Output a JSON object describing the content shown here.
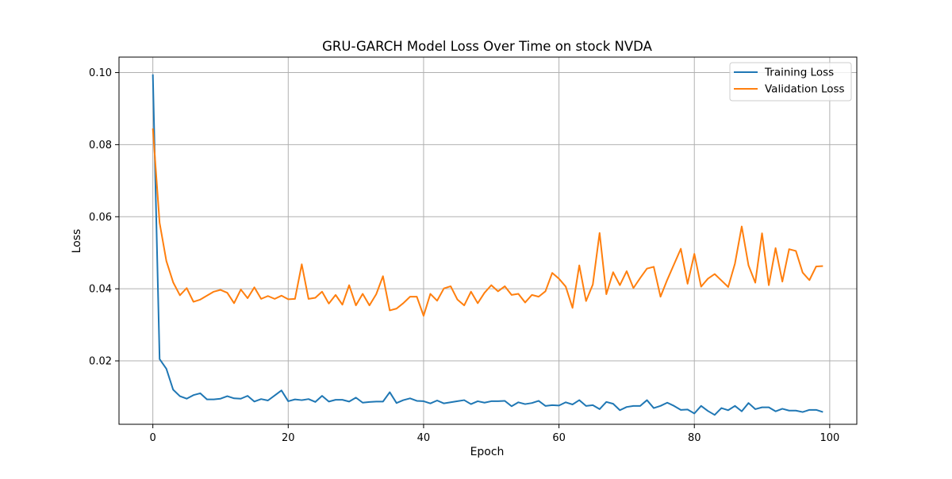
{
  "chart_data": {
    "type": "line",
    "title": "GRU-GARCH Model Loss Over Time on stock NVDA",
    "xlabel": "Epoch",
    "ylabel": "Loss",
    "xlim": [
      -5,
      104
    ],
    "ylim": [
      0.0024,
      0.1043
    ],
    "xticks": [
      0,
      20,
      40,
      60,
      80,
      100
    ],
    "xtick_labels": [
      "0",
      "20",
      "40",
      "60",
      "80",
      "100"
    ],
    "yticks": [
      0.02,
      0.04,
      0.06,
      0.08,
      0.1
    ],
    "ytick_labels": [
      "0.02",
      "0.04",
      "0.06",
      "0.08",
      "0.10"
    ],
    "grid": true,
    "legend_position": "top-right",
    "x": [
      0,
      1,
      2,
      3,
      4,
      5,
      6,
      7,
      8,
      9,
      10,
      11,
      12,
      13,
      14,
      15,
      16,
      17,
      18,
      19,
      20,
      21,
      22,
      23,
      24,
      25,
      26,
      27,
      28,
      29,
      30,
      31,
      32,
      33,
      34,
      35,
      36,
      37,
      38,
      39,
      40,
      41,
      42,
      43,
      44,
      45,
      46,
      47,
      48,
      49,
      50,
      51,
      52,
      53,
      54,
      55,
      56,
      57,
      58,
      59,
      60,
      61,
      62,
      63,
      64,
      65,
      66,
      67,
      68,
      69,
      70,
      71,
      72,
      73,
      74,
      75,
      76,
      77,
      78,
      79,
      80,
      81,
      82,
      83,
      84,
      85,
      86,
      87,
      88,
      89,
      90,
      91,
      92,
      93,
      94,
      95,
      96,
      97,
      98,
      99
    ],
    "series": [
      {
        "name": "Training Loss",
        "color": "#1f77b4",
        "values": [
          0.0995,
          0.0205,
          0.0178,
          0.012,
          0.0102,
          0.0095,
          0.0105,
          0.011,
          0.0093,
          0.0093,
          0.0095,
          0.0102,
          0.0096,
          0.0095,
          0.0103,
          0.0087,
          0.0094,
          0.009,
          0.0104,
          0.0118,
          0.0088,
          0.0093,
          0.0091,
          0.0094,
          0.0086,
          0.0103,
          0.0087,
          0.0092,
          0.0092,
          0.0087,
          0.0098,
          0.0084,
          0.0086,
          0.0087,
          0.0087,
          0.0113,
          0.0083,
          0.0091,
          0.0096,
          0.0089,
          0.0088,
          0.0082,
          0.009,
          0.0082,
          0.0085,
          0.0088,
          0.0091,
          0.008,
          0.0088,
          0.0084,
          0.0088,
          0.0088,
          0.0089,
          0.0074,
          0.0085,
          0.008,
          0.0083,
          0.0089,
          0.0075,
          0.0077,
          0.0076,
          0.0085,
          0.0079,
          0.0091,
          0.0075,
          0.0077,
          0.0066,
          0.0086,
          0.0081,
          0.0063,
          0.0072,
          0.0075,
          0.0075,
          0.0091,
          0.0069,
          0.0075,
          0.0084,
          0.0075,
          0.0064,
          0.0065,
          0.0054,
          0.0075,
          0.0061,
          0.005,
          0.0069,
          0.0063,
          0.0075,
          0.006,
          0.0083,
          0.0066,
          0.0071,
          0.0071,
          0.006,
          0.0067,
          0.0062,
          0.0062,
          0.0058,
          0.0064,
          0.0064,
          0.0058
        ]
      },
      {
        "name": "Validation Loss",
        "color": "#ff7f0e",
        "values": [
          0.0845,
          0.0583,
          0.0477,
          0.0418,
          0.0382,
          0.0402,
          0.0364,
          0.037,
          0.0381,
          0.0392,
          0.0397,
          0.0389,
          0.036,
          0.0398,
          0.0374,
          0.0404,
          0.0372,
          0.038,
          0.0372,
          0.0381,
          0.0371,
          0.0372,
          0.0468,
          0.0372,
          0.0375,
          0.0392,
          0.0359,
          0.0383,
          0.0356,
          0.041,
          0.0354,
          0.0386,
          0.0354,
          0.0385,
          0.0435,
          0.034,
          0.0345,
          0.036,
          0.0378,
          0.0378,
          0.0325,
          0.0386,
          0.0367,
          0.0401,
          0.0407,
          0.037,
          0.0354,
          0.0392,
          0.036,
          0.0389,
          0.041,
          0.0393,
          0.0407,
          0.0383,
          0.0386,
          0.0362,
          0.0383,
          0.0378,
          0.0393,
          0.0444,
          0.0428,
          0.0406,
          0.0347,
          0.0465,
          0.0366,
          0.0412,
          0.0555,
          0.0385,
          0.0446,
          0.041,
          0.0449,
          0.0402,
          0.043,
          0.0456,
          0.0461,
          0.0378,
          0.0425,
          0.0468,
          0.0511,
          0.0414,
          0.0497,
          0.0406,
          0.0428,
          0.0441,
          0.0423,
          0.0405,
          0.047,
          0.0573,
          0.0465,
          0.0417,
          0.0554,
          0.041,
          0.0513,
          0.042,
          0.051,
          0.0505,
          0.0445,
          0.0424,
          0.0462,
          0.0463
        ]
      }
    ]
  }
}
